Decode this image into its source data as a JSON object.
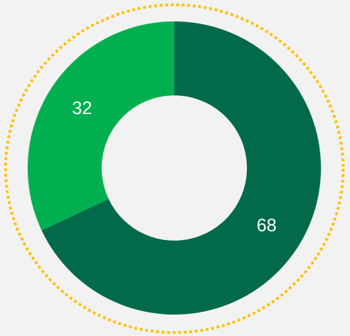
{
  "chart_data": {
    "type": "donut",
    "values": [
      68,
      32
    ],
    "colors": [
      "#006a4b",
      "#00b050"
    ]
  }
}
